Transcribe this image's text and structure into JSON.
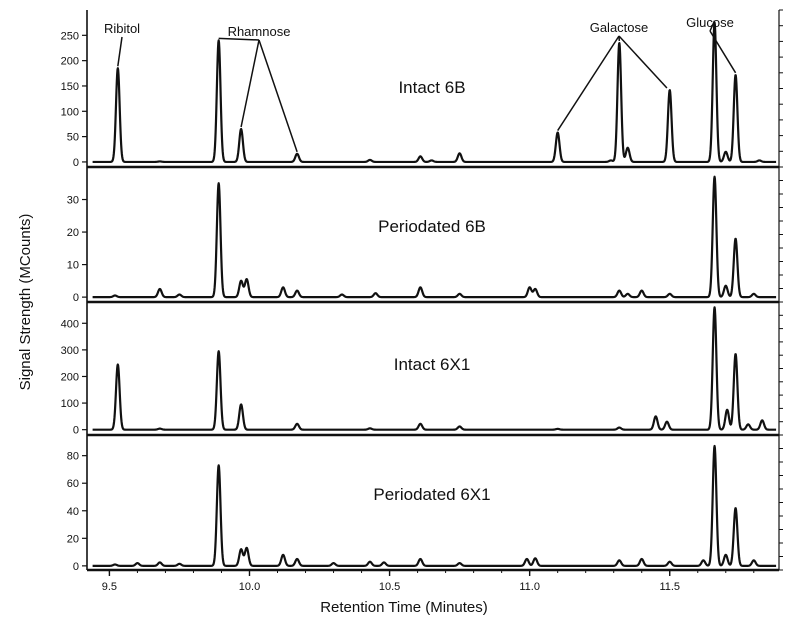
{
  "chart_data": {
    "type": "line",
    "xlabel": "Retention Time (Minutes)",
    "ylabel": "Signal Strength (MCounts)",
    "xlim": [
      9.42,
      11.89
    ],
    "xticks": [
      9.5,
      10.0,
      10.5,
      11.0,
      11.5
    ],
    "xtick_labels": [
      "9.5",
      "10.0",
      "10.5",
      "11.0",
      "11.5"
    ],
    "panels": [
      {
        "title": "Intact 6B",
        "ylim": [
          -10,
          300
        ],
        "yticks": [
          0,
          50,
          100,
          150,
          200,
          250
        ],
        "peaks": [
          {
            "x": 9.53,
            "y": 185
          },
          {
            "x": 9.68,
            "y": 1
          },
          {
            "x": 9.89,
            "y": 240
          },
          {
            "x": 9.97,
            "y": 65
          },
          {
            "x": 10.17,
            "y": 16
          },
          {
            "x": 10.43,
            "y": 4
          },
          {
            "x": 10.61,
            "y": 11
          },
          {
            "x": 10.65,
            "y": 3
          },
          {
            "x": 10.75,
            "y": 17
          },
          {
            "x": 11.1,
            "y": 58
          },
          {
            "x": 11.29,
            "y": 3
          },
          {
            "x": 11.32,
            "y": 235
          },
          {
            "x": 11.35,
            "y": 28
          },
          {
            "x": 11.5,
            "y": 142
          },
          {
            "x": 11.66,
            "y": 275
          },
          {
            "x": 11.7,
            "y": 20
          },
          {
            "x": 11.735,
            "y": 172
          },
          {
            "x": 11.82,
            "y": 3
          }
        ],
        "annotations": [
          {
            "label": "Ribitol",
            "x": 9.53
          },
          {
            "label": "Rhamnose",
            "x": [
              9.89,
              9.97,
              10.17
            ]
          },
          {
            "label": "Galactose",
            "x": [
              11.1,
              11.32,
              11.49
            ]
          },
          {
            "label": "Glucose",
            "x": [
              11.66,
              11.735
            ]
          }
        ]
      },
      {
        "title": "Periodated 6B",
        "ylim": [
          -1.5,
          40
        ],
        "yticks": [
          0,
          10,
          20,
          30
        ],
        "peaks": [
          {
            "x": 9.52,
            "y": 0.5
          },
          {
            "x": 9.68,
            "y": 2.5
          },
          {
            "x": 9.75,
            "y": 0.8
          },
          {
            "x": 9.89,
            "y": 35
          },
          {
            "x": 9.97,
            "y": 5
          },
          {
            "x": 9.99,
            "y": 5.5
          },
          {
            "x": 10.12,
            "y": 3
          },
          {
            "x": 10.17,
            "y": 2
          },
          {
            "x": 10.33,
            "y": 0.8
          },
          {
            "x": 10.45,
            "y": 1.2
          },
          {
            "x": 10.61,
            "y": 3
          },
          {
            "x": 10.75,
            "y": 1
          },
          {
            "x": 11.0,
            "y": 3
          },
          {
            "x": 11.02,
            "y": 2.5
          },
          {
            "x": 11.32,
            "y": 2
          },
          {
            "x": 11.35,
            "y": 1
          },
          {
            "x": 11.4,
            "y": 2
          },
          {
            "x": 11.5,
            "y": 1
          },
          {
            "x": 11.66,
            "y": 37
          },
          {
            "x": 11.7,
            "y": 3.5
          },
          {
            "x": 11.735,
            "y": 18
          },
          {
            "x": 11.8,
            "y": 1
          }
        ]
      },
      {
        "title": "Intact 6X1",
        "ylim": [
          -20,
          480
        ],
        "yticks": [
          0,
          100,
          200,
          300,
          400
        ],
        "peaks": [
          {
            "x": 9.53,
            "y": 245
          },
          {
            "x": 9.68,
            "y": 4
          },
          {
            "x": 9.89,
            "y": 295
          },
          {
            "x": 9.97,
            "y": 95
          },
          {
            "x": 10.17,
            "y": 22
          },
          {
            "x": 10.43,
            "y": 5
          },
          {
            "x": 10.61,
            "y": 22
          },
          {
            "x": 10.75,
            "y": 12
          },
          {
            "x": 11.1,
            "y": 3
          },
          {
            "x": 11.32,
            "y": 8
          },
          {
            "x": 11.45,
            "y": 50
          },
          {
            "x": 11.49,
            "y": 30
          },
          {
            "x": 11.66,
            "y": 460
          },
          {
            "x": 11.705,
            "y": 75
          },
          {
            "x": 11.735,
            "y": 285
          },
          {
            "x": 11.78,
            "y": 20
          },
          {
            "x": 11.83,
            "y": 35
          }
        ]
      },
      {
        "title": "Periodated 6X1",
        "ylim": [
          -3,
          95
        ],
        "yticks": [
          0,
          20,
          40,
          60,
          80
        ],
        "peaks": [
          {
            "x": 9.52,
            "y": 1
          },
          {
            "x": 9.6,
            "y": 2
          },
          {
            "x": 9.68,
            "y": 2.5
          },
          {
            "x": 9.75,
            "y": 1.5
          },
          {
            "x": 9.89,
            "y": 73
          },
          {
            "x": 9.97,
            "y": 12
          },
          {
            "x": 9.99,
            "y": 13
          },
          {
            "x": 10.12,
            "y": 8
          },
          {
            "x": 10.17,
            "y": 5
          },
          {
            "x": 10.3,
            "y": 2
          },
          {
            "x": 10.43,
            "y": 3
          },
          {
            "x": 10.48,
            "y": 2.5
          },
          {
            "x": 10.61,
            "y": 5
          },
          {
            "x": 10.75,
            "y": 2
          },
          {
            "x": 10.99,
            "y": 5
          },
          {
            "x": 11.02,
            "y": 5.5
          },
          {
            "x": 11.32,
            "y": 4
          },
          {
            "x": 11.4,
            "y": 5
          },
          {
            "x": 11.5,
            "y": 3
          },
          {
            "x": 11.62,
            "y": 4
          },
          {
            "x": 11.66,
            "y": 87
          },
          {
            "x": 11.7,
            "y": 8
          },
          {
            "x": 11.735,
            "y": 42
          },
          {
            "x": 11.8,
            "y": 4
          }
        ]
      }
    ]
  }
}
